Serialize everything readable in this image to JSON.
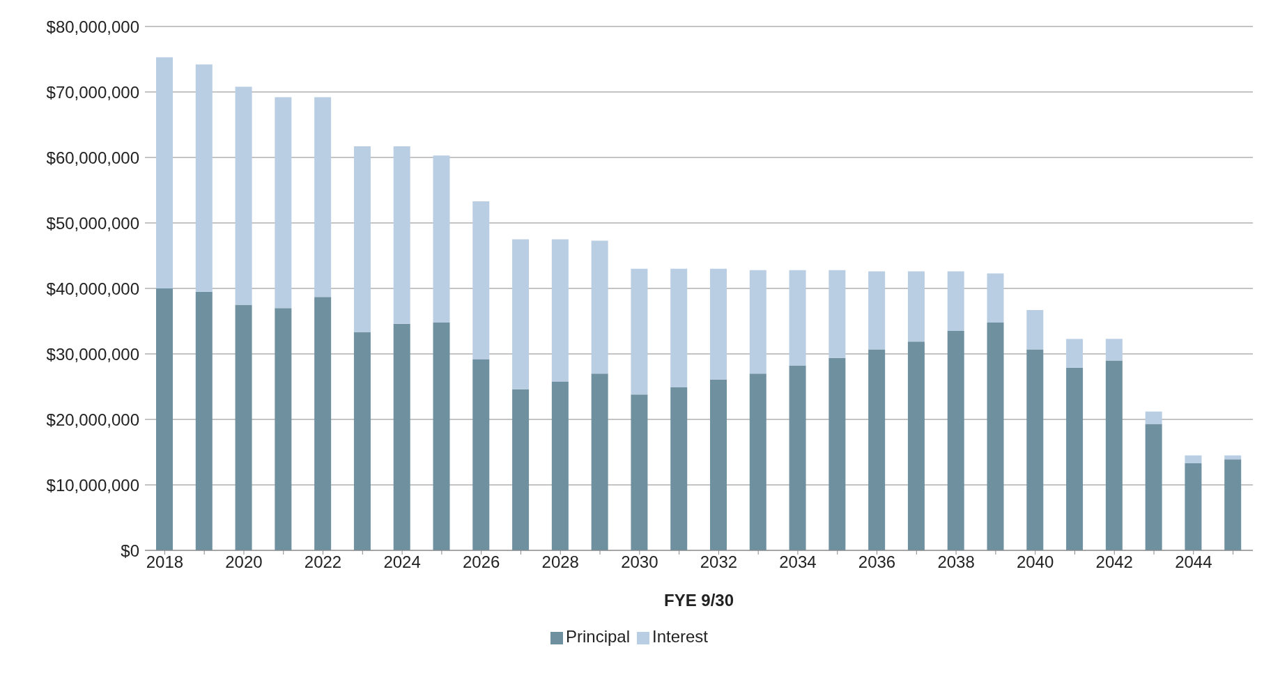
{
  "chart_data": {
    "type": "bar",
    "stacked": true,
    "xlabel": "FYE 9/30",
    "categories": [
      "2018",
      null,
      "2020",
      null,
      "2022",
      null,
      "2024",
      null,
      "2026",
      null,
      "2028",
      null,
      "2030",
      null,
      "2032",
      null,
      "2034",
      null,
      "2036",
      null,
      "2038",
      null,
      "2040",
      null,
      "2042",
      null,
      "2044",
      null
    ],
    "series": [
      {
        "name": "Principal",
        "color": "#6f909f",
        "values": [
          40000000,
          39500000,
          37500000,
          37000000,
          38700000,
          33300000,
          34600000,
          34800000,
          29200000,
          24600000,
          25800000,
          27000000,
          23800000,
          24900000,
          26100000,
          27000000,
          28200000,
          29400000,
          30700000,
          31900000,
          33500000,
          34800000,
          30700000,
          27900000,
          29000000,
          19300000,
          13300000,
          13900000
        ]
      },
      {
        "name": "Interest",
        "color": "#b9cde3",
        "values": [
          35300000,
          34700000,
          33300000,
          32200000,
          30500000,
          28400000,
          27100000,
          25500000,
          24100000,
          22900000,
          21700000,
          20300000,
          19200000,
          18100000,
          16900000,
          15800000,
          14600000,
          13400000,
          11900000,
          10700000,
          9100000,
          7500000,
          6000000,
          4400000,
          3300000,
          1900000,
          1200000,
          600000
        ]
      }
    ],
    "ylim": [
      0,
      80000000
    ],
    "yticks": [
      {
        "value": 0,
        "label": "$0"
      },
      {
        "value": 10000000,
        "label": "$10,000,000"
      },
      {
        "value": 20000000,
        "label": "$20,000,000"
      },
      {
        "value": 30000000,
        "label": "$30,000,000"
      },
      {
        "value": 40000000,
        "label": "$40,000,000"
      },
      {
        "value": 50000000,
        "label": "$50,000,000"
      },
      {
        "value": 60000000,
        "label": "$60,000,000"
      },
      {
        "value": 70000000,
        "label": "$70,000,000"
      },
      {
        "value": 80000000,
        "label": "$80,000,000"
      }
    ],
    "grid": "y",
    "legend": "bottom"
  }
}
